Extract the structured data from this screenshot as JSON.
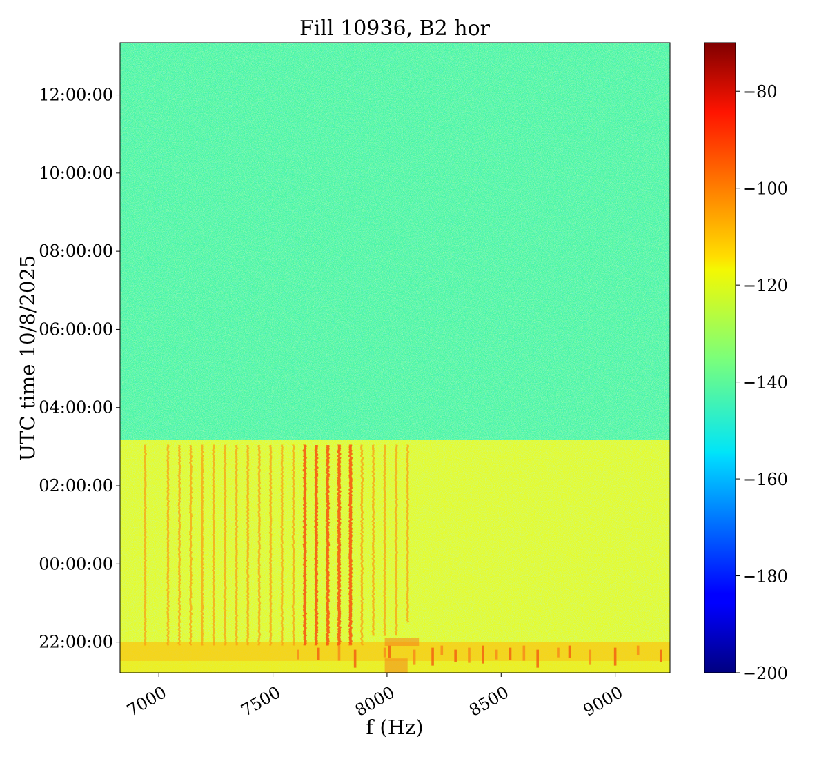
{
  "chart_data": {
    "type": "heatmap",
    "title": "Fill 10936, B2 hor",
    "xlabel": "f (Hz)",
    "ylabel": "UTC time 10/8/2025",
    "xlim": [
      6830,
      9240
    ],
    "x_ticks": [
      7000,
      7500,
      8000,
      8500,
      9000
    ],
    "y_ticks": [
      "12:00:00",
      "10:00:00",
      "08:00:00",
      "06:00:00",
      "04:00:00",
      "02:00:00",
      "00:00:00",
      "22:00:00"
    ],
    "ylim_start": "21:13 (10/7/2025)",
    "ylim_end": "13:20 (10/8/2025)",
    "colormap": "jet",
    "colorbar": {
      "range": [
        -200,
        -70
      ],
      "ticks": [
        -80,
        -100,
        -120,
        -140,
        -160,
        -180,
        -200
      ]
    },
    "regions": [
      {
        "from": "03:03:00",
        "to": "13:20:00",
        "level_db": -140,
        "description": "quiet background"
      },
      {
        "from": "21:13:00",
        "to": "03:03:00",
        "level_db": -118,
        "description": "raised background with spectral lines"
      }
    ],
    "spectral_lines_hz": [
      6940,
      7040,
      7090,
      7140,
      7190,
      7240,
      7290,
      7340,
      7390,
      7440,
      7490,
      7540,
      7590,
      7640,
      7690,
      7740,
      7790,
      7840,
      7890,
      7940,
      7990,
      8040,
      8090
    ],
    "strong_lines_hz": [
      7595,
      7695,
      7795,
      7845
    ],
    "grid": false,
    "legend": "none"
  }
}
